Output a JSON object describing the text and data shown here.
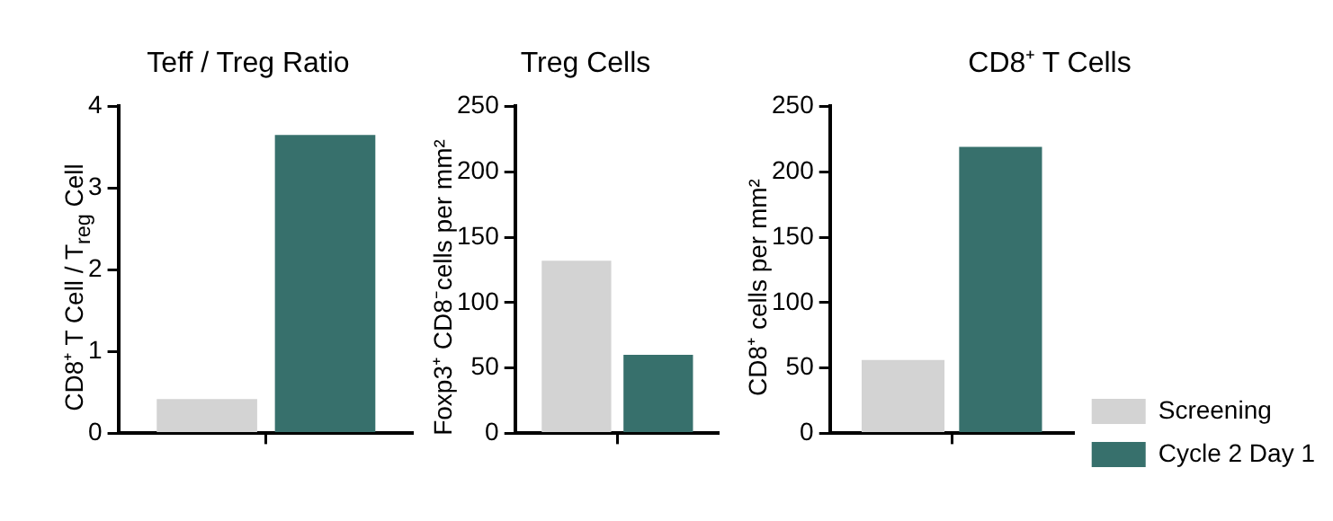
{
  "chart_data": [
    {
      "type": "bar",
      "title": "Teff / Treg Ratio",
      "ylabel": "CD8⁺ T Cell / T$_{reg}$ Cell",
      "categories": [
        null
      ],
      "series": [
        {
          "color": "#d3d3d3",
          "values": [
            0.42
          ]
        },
        {
          "color": "#37706c",
          "values": [
            3.65
          ]
        }
      ],
      "ylim": [
        0,
        4
      ],
      "yticks": [
        0,
        1,
        2,
        3,
        4
      ],
      "grid": false,
      "legend": false
    },
    {
      "type": "bar",
      "title": "Treg Cells",
      "ylabel": "Foxp3⁺ CD8⁻cells per mm²",
      "categories": [
        null
      ],
      "series": [
        {
          "color": "#d3d3d3",
          "values": [
            132
          ]
        },
        {
          "color": "#37706c",
          "values": [
            60
          ]
        }
      ],
      "ylim": [
        0,
        250
      ],
      "yticks": [
        0,
        50,
        100,
        150,
        200,
        250
      ],
      "grid": false,
      "legend": false
    },
    {
      "type": "bar",
      "title": "CD8⁺ T Cells",
      "ylabel": "CD8⁺ cells per mm²",
      "categories": [
        null
      ],
      "series": [
        {
          "name": "Screening",
          "color": "#d3d3d3",
          "values": [
            56
          ]
        },
        {
          "name": "Cycle 2 Day 1",
          "color": "#37706c",
          "values": [
            219
          ]
        }
      ],
      "ylim": [
        0,
        250
      ],
      "yticks": [
        0,
        50,
        100,
        150,
        200,
        250
      ],
      "grid": false,
      "legend": "right"
    }
  ]
}
